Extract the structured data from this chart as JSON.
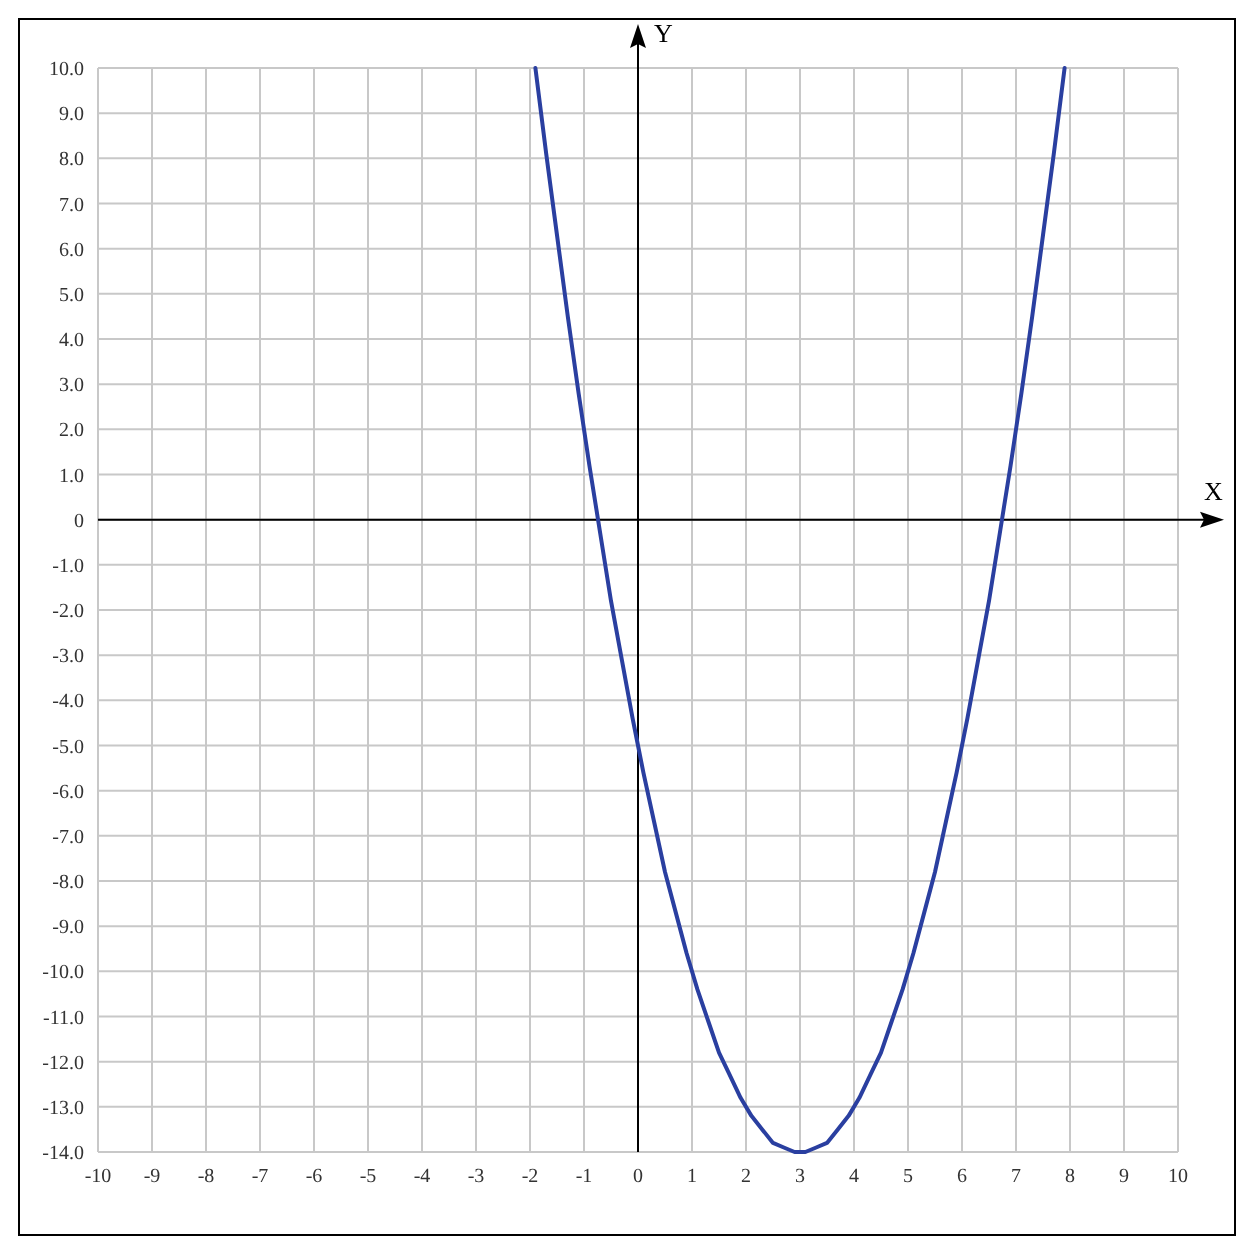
{
  "chart_data": {
    "type": "line",
    "xlabel": "X",
    "ylabel": "Y",
    "xlim": [
      -10,
      10
    ],
    "ylim": [
      -14,
      10
    ],
    "xticks": [
      -10,
      -9,
      -8,
      -7,
      -6,
      -5,
      -4,
      -3,
      -2,
      -1,
      0,
      1,
      2,
      3,
      4,
      5,
      6,
      7,
      8,
      9,
      10
    ],
    "yticks": [
      {
        "value": 10,
        "label": "10.0"
      },
      {
        "value": 9,
        "label": "9.0"
      },
      {
        "value": 8,
        "label": "8.0"
      },
      {
        "value": 7,
        "label": "7.0"
      },
      {
        "value": 6,
        "label": "6.0"
      },
      {
        "value": 5,
        "label": "5.0"
      },
      {
        "value": 4,
        "label": "4.0"
      },
      {
        "value": 3,
        "label": "3.0"
      },
      {
        "value": 2,
        "label": "2.0"
      },
      {
        "value": 1,
        "label": "1.0"
      },
      {
        "value": 0,
        "label": "0"
      },
      {
        "value": -1,
        "label": "-1.0"
      },
      {
        "value": -2,
        "label": "-2.0"
      },
      {
        "value": -3,
        "label": "-3.0"
      },
      {
        "value": -4,
        "label": "-4.0"
      },
      {
        "value": -5,
        "label": "-5.0"
      },
      {
        "value": -6,
        "label": "-6.0"
      },
      {
        "value": -7,
        "label": "-7.0"
      },
      {
        "value": -8,
        "label": "-8.0"
      },
      {
        "value": -9,
        "label": "-9.0"
      },
      {
        "value": -10,
        "label": "-10.0"
      },
      {
        "value": -11,
        "label": "-11.0"
      },
      {
        "value": -12,
        "label": "-12.0"
      },
      {
        "value": -13,
        "label": "-13.0"
      },
      {
        "value": -14,
        "label": "-14.0"
      }
    ],
    "grid": true,
    "line_style": "solid",
    "series": [
      {
        "color": "#2a3fa0",
        "x": [
          -1.9,
          -1.7,
          -1.5,
          -1.3,
          -1.1,
          -0.9,
          -0.7,
          -0.5,
          -0.3,
          -0.1,
          0,
          0.1,
          0.3,
          0.5,
          0.7,
          0.9,
          1.1,
          1.3,
          1.5,
          1.7,
          1.9,
          2.1,
          2.3,
          2.5,
          2.7,
          2.9,
          3,
          3.1,
          3.3,
          3.5,
          3.7,
          3.9,
          4.1,
          4.3,
          4.5,
          4.7,
          4.9,
          5.1,
          5.3,
          5.5,
          5.7,
          5.9,
          6.1,
          6.3,
          6.5,
          6.7,
          6.9,
          7.1,
          7.3,
          7.5,
          7.7,
          7.9
        ],
        "values": [
          10.0,
          8.1,
          6.3,
          4.5,
          2.8,
          1.2,
          -0.3,
          -1.8,
          -3.1,
          -4.4,
          -5.0,
          -5.6,
          -6.7,
          -7.8,
          -8.7,
          -9.6,
          -10.4,
          -11.1,
          -11.8,
          -12.3,
          -12.8,
          -13.2,
          -13.5,
          -13.8,
          -13.9,
          -14.0,
          -14.0,
          -14.0,
          -13.9,
          -13.8,
          -13.5,
          -13.2,
          -12.8,
          -12.3,
          -11.8,
          -11.1,
          -10.4,
          -9.6,
          -8.7,
          -7.8,
          -6.7,
          -5.6,
          -4.4,
          -3.1,
          -1.8,
          -0.3,
          1.2,
          2.8,
          4.5,
          6.3,
          8.1,
          10.0
        ]
      }
    ]
  }
}
